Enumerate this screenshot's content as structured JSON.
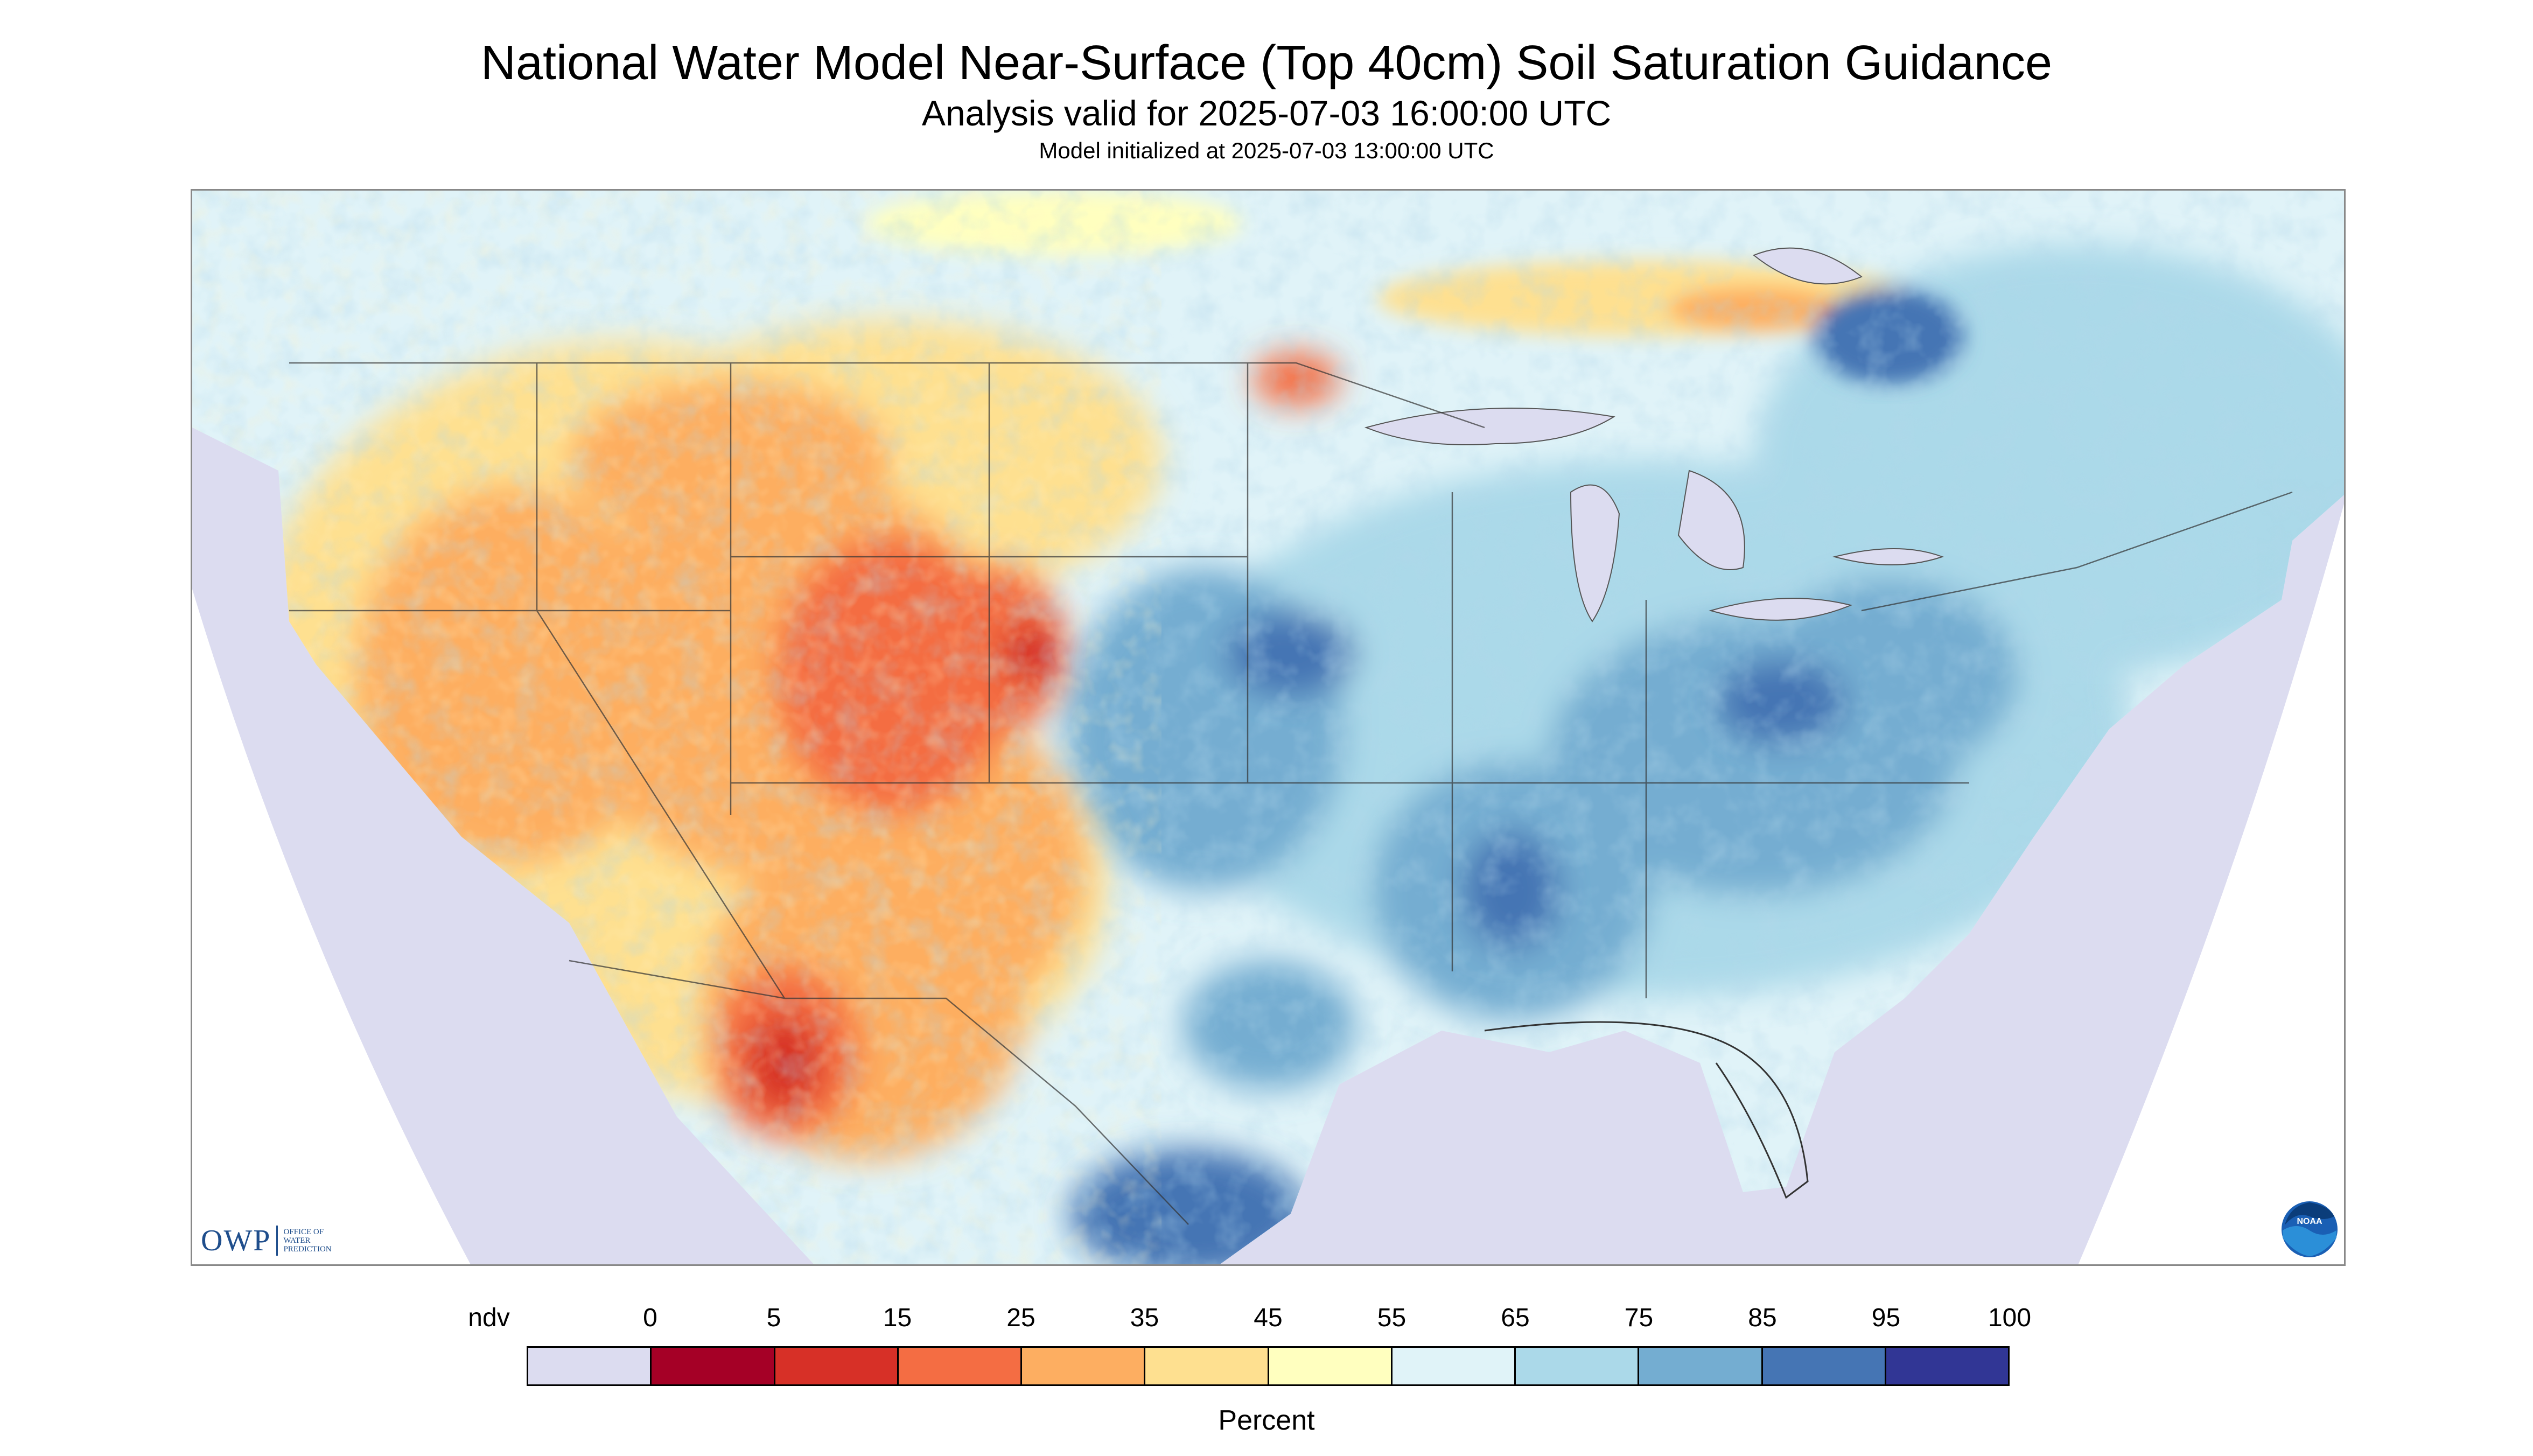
{
  "title": "National Water Model Near-Surface (Top 40cm) Soil Saturation Guidance",
  "subtitle": "Analysis valid for 2025-07-03 16:00:00 UTC",
  "init_line": "Model initialized at 2025-07-03 13:00:00 UTC",
  "owp_logo": {
    "mark": "OWP",
    "lines": [
      "OFFICE OF",
      "WATER",
      "PREDICTION"
    ]
  },
  "noaa_logo": {
    "text": "NOAA"
  },
  "legend": {
    "title": "Percent",
    "ticks": [
      "ndv",
      "0",
      "5",
      "15",
      "25",
      "35",
      "45",
      "55",
      "65",
      "75",
      "85",
      "95",
      "100"
    ],
    "bins": [
      {
        "label": "ndv",
        "color": "#dcdcf0"
      },
      {
        "label": "0-5",
        "color": "#a50026"
      },
      {
        "label": "5-15",
        "color": "#d73027"
      },
      {
        "label": "15-25",
        "color": "#f46d43"
      },
      {
        "label": "25-35",
        "color": "#fdae61"
      },
      {
        "label": "35-45",
        "color": "#fee090"
      },
      {
        "label": "45-55",
        "color": "#ffffbf"
      },
      {
        "label": "55-65",
        "color": "#e0f3f8"
      },
      {
        "label": "65-75",
        "color": "#abd9e9"
      },
      {
        "label": "75-85",
        "color": "#74add1"
      },
      {
        "label": "85-95",
        "color": "#4575b4"
      },
      {
        "label": "95-100",
        "color": "#313695"
      }
    ]
  }
}
